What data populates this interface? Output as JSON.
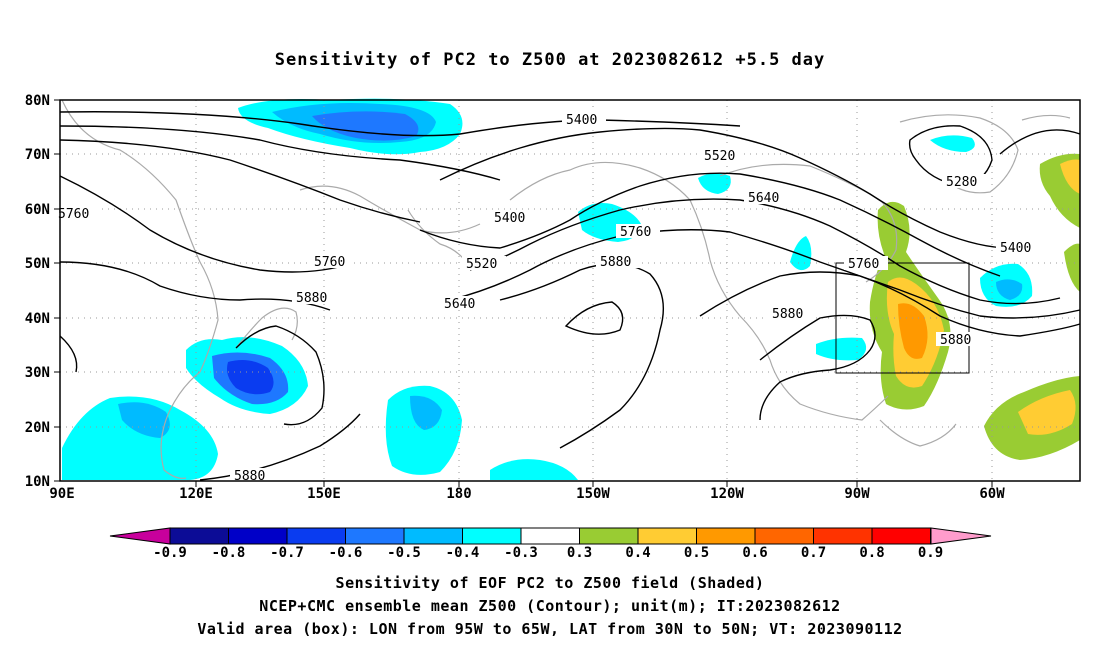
{
  "title": "Sensitivity of PC2 to Z500 at 2023082612 +5.5 day",
  "map": {
    "lat_labels": [
      "80N",
      "70N",
      "60N",
      "50N",
      "40N",
      "30N",
      "20N",
      "10N"
    ],
    "lon_labels": [
      "90E",
      "120E",
      "150E",
      "180",
      "150W",
      "120W",
      "90W",
      "60W"
    ],
    "contour_labels": [
      "5400",
      "5520",
      "5640",
      "5760",
      "5280",
      "5400",
      "5760",
      "5400",
      "5520",
      "5760",
      "5880",
      "5640",
      "5880",
      "5880",
      "5880",
      "5880"
    ],
    "box": {
      "lon_from": "95W",
      "lon_to": "65W",
      "lat_from": "30N",
      "lat_to": "50N"
    }
  },
  "colorbar": {
    "labels": [
      "-0.9",
      "-0.8",
      "-0.7",
      "-0.6",
      "-0.5",
      "-0.4",
      "-0.3",
      "0.3",
      "0.4",
      "0.5",
      "0.6",
      "0.7",
      "0.8",
      "0.9"
    ],
    "colors": [
      "#0c0c96",
      "#0000c8",
      "#0a3cf0",
      "#1e78ff",
      "#00bbff",
      "#00ffff",
      "#ffffff",
      "#99cc33",
      "#ffcc33",
      "#ff9900",
      "#ff6600",
      "#ff3300",
      "#ff0000"
    ],
    "low_arrow_color": "#c8009c",
    "high_arrow_color": "#ff9ccc"
  },
  "footer": {
    "line1": "Sensitivity of EOF PC2 to Z500 field (Shaded)",
    "line2": "NCEP+CMC ensemble mean Z500 (Contour); unit(m); IT:2023082612",
    "line3": "Valid area (box): LON from 95W to 65W, LAT from 30N to 50N; VT: 2023090112"
  }
}
